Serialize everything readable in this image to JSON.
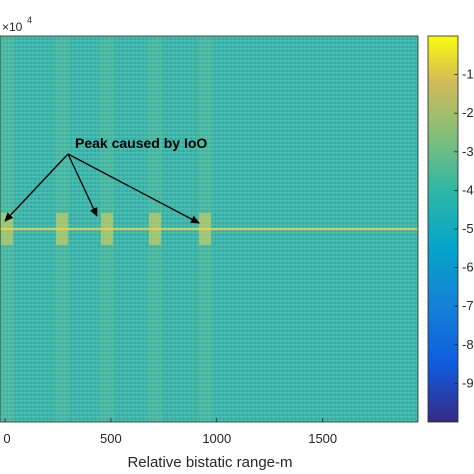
{
  "chart_data": {
    "type": "heatmap",
    "title": "",
    "xlabel": "Relative bistatic range-m",
    "ylabel": "",
    "x_ticks": [
      "0",
      "500",
      "1000",
      "1500"
    ],
    "x_tick_values": [
      0,
      500,
      1000,
      1500
    ],
    "xlim": [
      0,
      1950
    ],
    "y_exponent_label": "×10",
    "y_exponent": "4",
    "colorbar": {
      "colormap": "parula",
      "ticks": [
        "-1",
        "-2",
        "-3",
        "-4",
        "-5",
        "-6",
        "-7",
        "-8",
        "-9"
      ],
      "tick_values": [
        -1,
        -2,
        -3,
        -4,
        -5,
        -6,
        -7,
        -8,
        -9
      ],
      "range": [
        -10,
        0
      ]
    },
    "bright_columns_x": [
      10,
      60,
      105,
      155,
      205
    ],
    "peak_line_x_range": [
      0,
      420
    ],
    "annotation": {
      "text": "Peak caused by IoO",
      "arrow_targets_x": [
        5,
        95,
        200
      ]
    },
    "colors": {
      "background": "#3db9b0",
      "peak": "#e6d150",
      "arrow": "#000000"
    }
  }
}
